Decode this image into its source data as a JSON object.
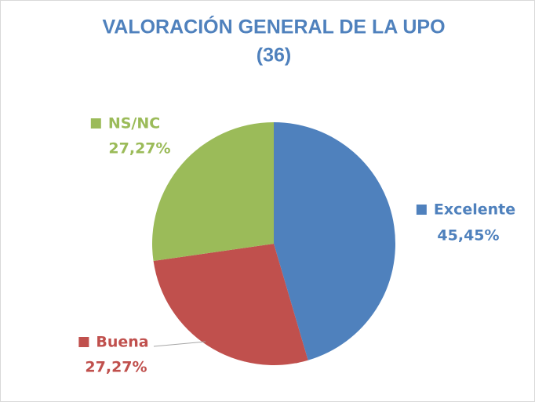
{
  "chart_data": {
    "type": "pie",
    "title": [
      "VALORACIÓN GENERAL DE LA UPO",
      "(36)"
    ],
    "categories": [
      "Excelente",
      "Buena",
      "NS/NC"
    ],
    "values": [
      45.45,
      27.27,
      27.27
    ],
    "value_labels": [
      "45,45%",
      "27,27%",
      "27,27%"
    ],
    "colors": [
      "#4f81bd",
      "#c0504d",
      "#9bbb59"
    ]
  }
}
